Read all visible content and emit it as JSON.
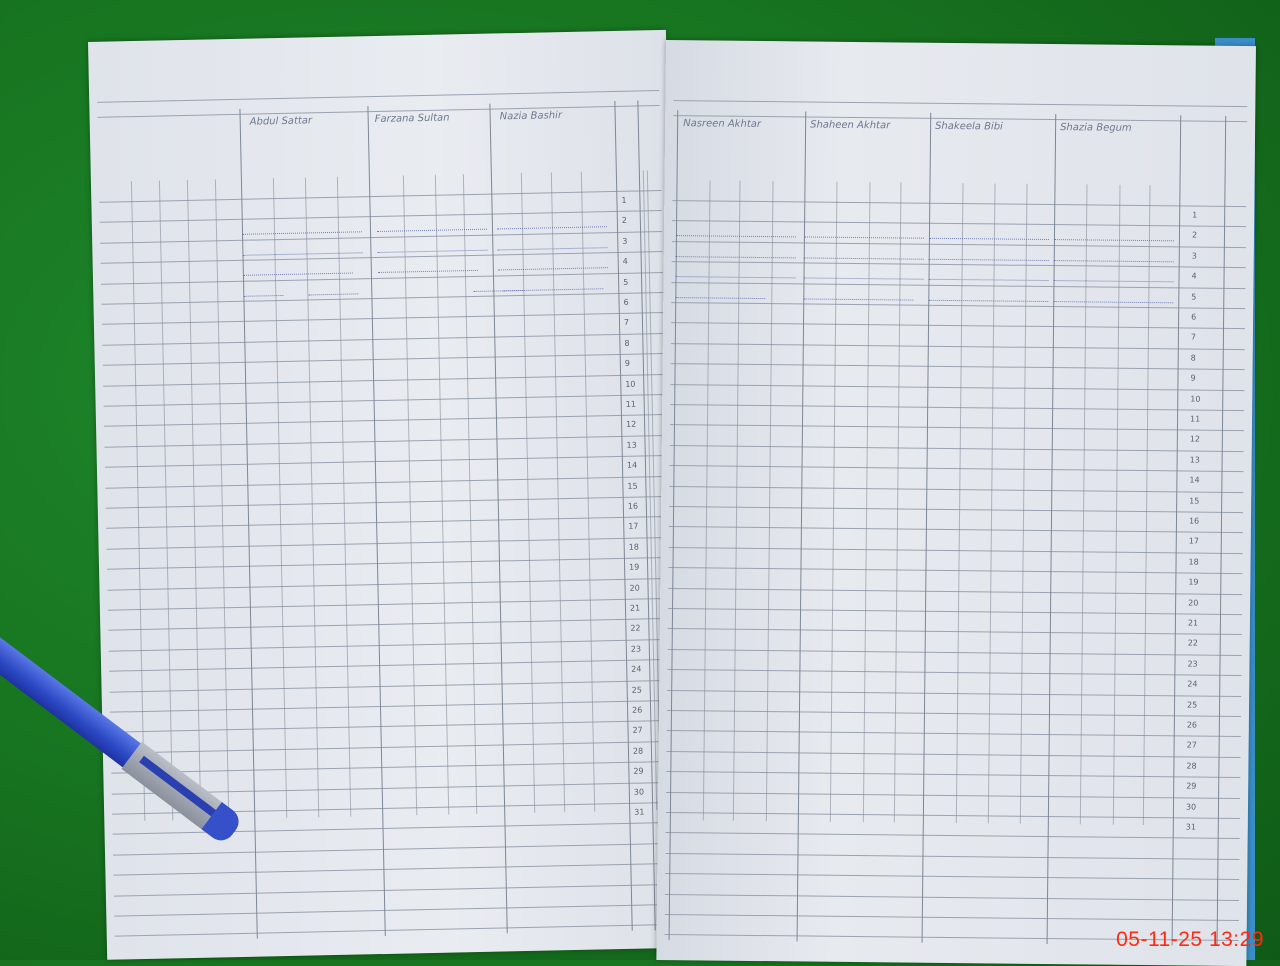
{
  "left_page": {
    "columns": [
      "Abdul Sattar",
      "Farzana Sultan",
      "Nazia Bashir"
    ],
    "row_numbers": [
      "1",
      "2",
      "3",
      "4",
      "5",
      "6",
      "7",
      "8",
      "9",
      "10",
      "11",
      "12",
      "13",
      "14",
      "15",
      "16",
      "17",
      "18",
      "19",
      "20",
      "21",
      "22",
      "23",
      "24",
      "25",
      "26",
      "27",
      "28",
      "29",
      "30",
      "31"
    ]
  },
  "right_page": {
    "columns": [
      "Nasreen Akhtar",
      "Shaheen Akhtar",
      "Shakeela Bibi",
      "Shazia Begum"
    ],
    "row_numbers": [
      "1",
      "2",
      "3",
      "4",
      "5",
      "6",
      "7",
      "8",
      "9",
      "10",
      "11",
      "12",
      "13",
      "14",
      "15",
      "16",
      "17",
      "18",
      "19",
      "20",
      "21",
      "22",
      "23",
      "24",
      "25",
      "26",
      "27",
      "28",
      "29",
      "30",
      "31"
    ]
  },
  "timestamp": "05-11-25  13:29",
  "colors": {
    "background": "#17731f",
    "paper": "#e6e9ee",
    "timestamp": "#ff2a12",
    "pen": "#2c49c4"
  }
}
